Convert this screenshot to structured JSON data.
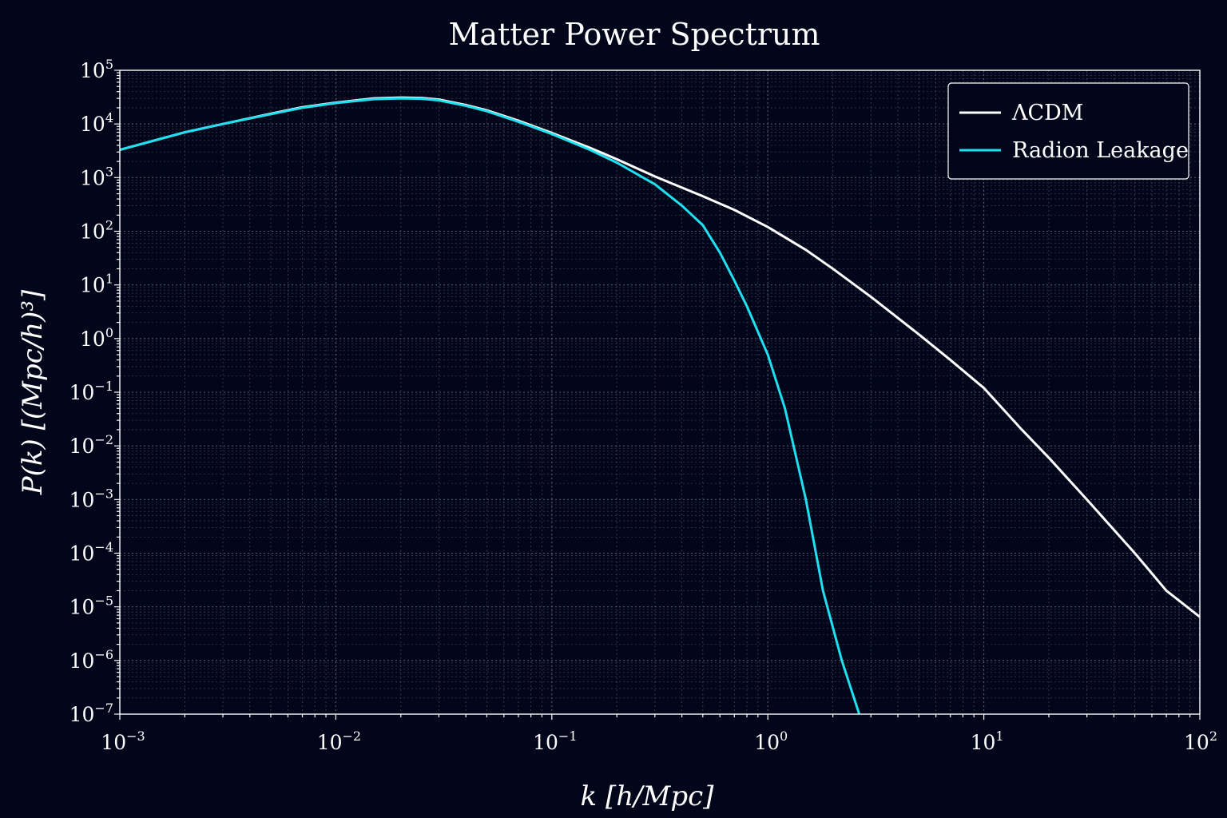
{
  "colors": {
    "background": "#02061a",
    "grid": "#5f6478",
    "axes": "#ffffff",
    "text": "#ffffff"
  },
  "chart_data": {
    "type": "line",
    "title": "Matter Power Spectrum",
    "xlabel": "k [h/Mpc]",
    "ylabel": "P(k) [(Mpc/h)³]",
    "xscale": "log",
    "yscale": "log",
    "xlim": [
      0.001,
      100
    ],
    "ylim": [
      1e-07,
      100000
    ],
    "grid": true,
    "grid_style": "dotted, major and minor",
    "legend_position": "top-right",
    "x_ticks": [
      {
        "base": "10",
        "exp": "−3"
      },
      {
        "base": "10",
        "exp": "−2"
      },
      {
        "base": "10",
        "exp": "−1"
      },
      {
        "base": "10",
        "exp": "0"
      },
      {
        "base": "10",
        "exp": "1"
      },
      {
        "base": "10",
        "exp": "2"
      }
    ],
    "y_ticks": [
      {
        "base": "10",
        "exp": "5"
      },
      {
        "base": "10",
        "exp": "4"
      },
      {
        "base": "10",
        "exp": "3"
      },
      {
        "base": "10",
        "exp": "2"
      },
      {
        "base": "10",
        "exp": "1"
      },
      {
        "base": "10",
        "exp": "0"
      },
      {
        "base": "10",
        "exp": "−1"
      },
      {
        "base": "10",
        "exp": "−2"
      },
      {
        "base": "10",
        "exp": "−3"
      },
      {
        "base": "10",
        "exp": "−4"
      },
      {
        "base": "10",
        "exp": "−5"
      },
      {
        "base": "10",
        "exp": "−6"
      },
      {
        "base": "10",
        "exp": "−7"
      }
    ],
    "series": [
      {
        "name": "ΛCDM",
        "color": "#ffffff",
        "x": [
          0.001,
          0.002,
          0.003,
          0.005,
          0.007,
          0.01,
          0.015,
          0.02,
          0.025,
          0.03,
          0.04,
          0.05,
          0.07,
          0.1,
          0.15,
          0.2,
          0.3,
          0.5,
          0.7,
          1,
          1.5,
          2,
          3,
          5,
          7,
          10,
          15,
          20,
          30,
          50,
          70,
          100
        ],
        "y": [
          3300,
          7000,
          10000,
          15500,
          20500,
          25000,
          30000,
          31000,
          30500,
          28500,
          22500,
          18000,
          11500,
          6800,
          3600,
          2200,
          1050,
          450,
          250,
          120,
          45,
          20,
          6,
          1.2,
          0.4,
          0.12,
          0.02,
          0.006,
          0.001,
          0.0001,
          2e-05,
          6.5e-06
        ]
      },
      {
        "name": "Radion Leakage",
        "color": "#1ee0f0",
        "x": [
          0.001,
          0.002,
          0.003,
          0.005,
          0.007,
          0.01,
          0.015,
          0.02,
          0.025,
          0.03,
          0.04,
          0.05,
          0.07,
          0.1,
          0.15,
          0.2,
          0.3,
          0.4,
          0.5,
          0.6,
          0.7,
          0.8,
          1,
          1.2,
          1.5,
          1.8,
          2.2,
          2.65
        ],
        "y": [
          3300,
          7000,
          10000,
          15200,
          20000,
          24500,
          29000,
          30000,
          29500,
          27500,
          21800,
          17300,
          11000,
          6500,
          3300,
          1900,
          750,
          300,
          130,
          40,
          12,
          4,
          0.5,
          0.05,
          0.001,
          2e-05,
          1e-06,
          1e-07
        ]
      }
    ]
  }
}
